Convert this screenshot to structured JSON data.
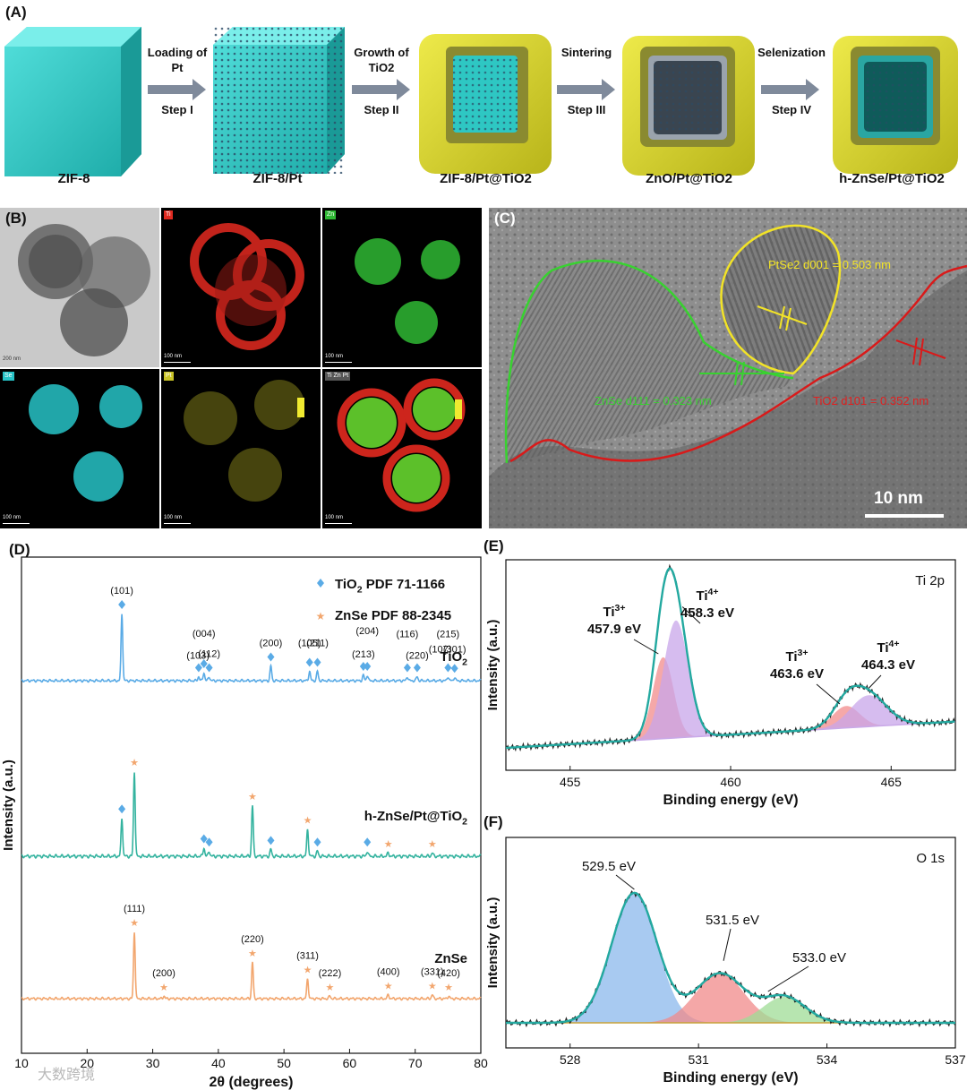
{
  "panel_a": {
    "label": "(A)",
    "stages": [
      "ZIF-8",
      "ZIF-8/Pt",
      "ZIF-8/Pt@TiO2",
      "ZnO/Pt@TiO2",
      "h-ZnSe/Pt@TiO2"
    ],
    "steps": [
      {
        "top": "Loading of Pt",
        "bottom": "Step I"
      },
      {
        "top": "Growth of TiO2",
        "bottom": "Step II"
      },
      {
        "top": "Sintering",
        "bottom": "Step III"
      },
      {
        "top": "Selenization",
        "bottom": "Step IV"
      }
    ],
    "colors": {
      "zif8": "#2ec7c3",
      "tio2_shell": "#d7d326",
      "arrow": "#7f8a9b"
    }
  },
  "panel_b": {
    "label": "(B)",
    "tiles": [
      {
        "tag": "",
        "scale": "200 nm"
      },
      {
        "tag": "Ti",
        "scale": "100 nm"
      },
      {
        "tag": "Zn",
        "scale": "100 nm"
      },
      {
        "tag": "Se",
        "scale": "100 nm"
      },
      {
        "tag": "Pt",
        "scale": "100 nm"
      },
      {
        "tag": "Ti Zn Pt",
        "scale": "100 nm"
      }
    ]
  },
  "panel_c": {
    "label": "(C)",
    "ptse2": "PtSe2 d001 = 0.503 nm",
    "znse": "ZnSe d111 = 0.323 nm",
    "tio2": "TiO2 d101 = 0.352 nm",
    "scale": "10 nm"
  },
  "chart_data": [
    {
      "panel": "(D)",
      "type": "line",
      "xlabel": "2θ (degrees)",
      "ylabel": "Intensity (a.u.)",
      "xlim": [
        10,
        80
      ],
      "xticks": [
        10,
        20,
        30,
        40,
        50,
        60,
        70,
        80
      ],
      "legend": [
        "TiO2 PDF 71-1166",
        "ZnSe PDF 88-2345"
      ],
      "series": [
        {
          "name": "TiO2",
          "color": "#5aabe6",
          "peaks": [
            [
              25.3,
              1.0
            ],
            [
              37.0,
              0.06
            ],
            [
              37.8,
              0.12
            ],
            [
              38.6,
              0.06
            ],
            [
              48.0,
              0.22
            ],
            [
              53.9,
              0.14
            ],
            [
              55.1,
              0.14
            ],
            [
              62.1,
              0.08
            ],
            [
              62.7,
              0.08
            ],
            [
              68.8,
              0.06
            ],
            [
              70.3,
              0.06
            ],
            [
              75.0,
              0.06
            ],
            [
              76.0,
              0.05
            ]
          ],
          "annotations": [
            [
              "(101)",
              25.3
            ],
            [
              "(103)",
              36.9
            ],
            [
              "(004)",
              37.8
            ],
            [
              "(112)",
              38.6
            ],
            [
              "(200)",
              48.0
            ],
            [
              "(105)",
              53.9
            ],
            [
              "(211)",
              55.1
            ],
            [
              "(213)",
              62.1
            ],
            [
              "(204)",
              62.7
            ],
            [
              "(116)",
              68.8
            ],
            [
              "(220)",
              70.3
            ],
            [
              "(107)",
              73.8
            ],
            [
              "(215)",
              75.0
            ],
            [
              "(301)",
              76.0
            ]
          ]
        },
        {
          "name": "h-ZnSe/Pt@TiO2",
          "color": "#34b39f",
          "peaks": [
            [
              25.3,
              0.45
            ],
            [
              27.2,
              1.0
            ],
            [
              37.8,
              0.1
            ],
            [
              38.6,
              0.06
            ],
            [
              45.2,
              0.6
            ],
            [
              48.0,
              0.08
            ],
            [
              53.6,
              0.32
            ],
            [
              55.1,
              0.06
            ],
            [
              62.7,
              0.06
            ],
            [
              65.9,
              0.04
            ],
            [
              72.6,
              0.04
            ]
          ]
        },
        {
          "name": "ZnSe",
          "color": "#f2a66e",
          "peaks": [
            [
              27.2,
              1.0
            ],
            [
              31.7,
              0.04
            ],
            [
              45.2,
              0.55
            ],
            [
              53.6,
              0.3
            ],
            [
              57.0,
              0.04
            ],
            [
              65.9,
              0.06
            ],
            [
              72.6,
              0.06
            ],
            [
              75.1,
              0.04
            ]
          ],
          "annotations": [
            [
              "(111)",
              27.2
            ],
            [
              "(200)",
              31.7
            ],
            [
              "(220)",
              45.2
            ],
            [
              "(311)",
              53.6
            ],
            [
              "(222)",
              57.0
            ],
            [
              "(400)",
              65.9
            ],
            [
              "(331)",
              72.6
            ],
            [
              "(420)",
              75.1
            ]
          ]
        }
      ]
    },
    {
      "panel": "(E)",
      "type": "line",
      "title": "Ti 2p",
      "xlabel": "Binding energy (eV)",
      "ylabel": "Intensity (a.u.)",
      "xlim": [
        453,
        467
      ],
      "xticks": [
        455,
        460,
        465
      ],
      "components": [
        {
          "label": "Ti3+ 457.9 eV",
          "center": 457.9,
          "height": 0.52,
          "width": 0.45,
          "color": "#f28b8b"
        },
        {
          "label": "Ti4+ 458.3 eV",
          "center": 458.3,
          "height": 0.75,
          "width": 0.55,
          "color": "#c8a6ea"
        },
        {
          "label": "Ti3+ 463.6 eV",
          "center": 463.6,
          "height": 0.14,
          "width": 0.6,
          "color": "#f28b8b"
        },
        {
          "label": "Ti4+ 464.3 eV",
          "center": 464.3,
          "height": 0.2,
          "width": 0.8,
          "color": "#c8a6ea"
        }
      ]
    },
    {
      "panel": "(F)",
      "type": "line",
      "title": "O 1s",
      "xlabel": "Binding energy (eV)",
      "ylabel": "Intensity (a.u.)",
      "xlim": [
        526.5,
        537
      ],
      "xticks": [
        528,
        531,
        534,
        537
      ],
      "components": [
        {
          "label": "529.5 eV",
          "center": 529.5,
          "height": 1.0,
          "width": 0.75,
          "color": "#8bb8ec"
        },
        {
          "label": "531.5 eV",
          "center": 531.5,
          "height": 0.38,
          "width": 0.8,
          "color": "#f08a8a"
        },
        {
          "label": "533.0 eV",
          "center": 533.0,
          "height": 0.2,
          "width": 0.7,
          "color": "#9fdc95"
        }
      ]
    }
  ],
  "watermark": "大数跨境"
}
